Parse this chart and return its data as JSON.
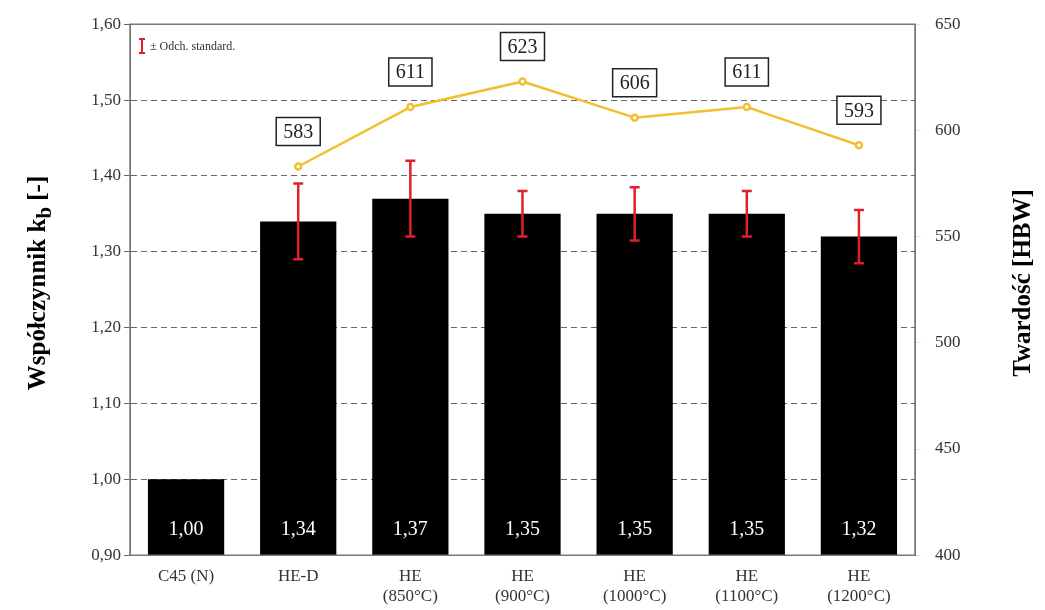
{
  "chart_data": {
    "type": "bar",
    "ylabel": "Współczynnik k$_{b}$ [-]",
    "y2label": "Twardość [HBW]",
    "categories": [
      "C45 (N)",
      "HE-D",
      "HE\n(850°C)",
      "HE\n(900°C)",
      "HE\n(1000°C)",
      "HE\n(1100°C)",
      "HE\n(1200°C)"
    ],
    "series": [
      {
        "color": "#000000",
        "values": [
          1.0,
          1.34,
          1.37,
          1.35,
          1.35,
          1.35,
          1.32
        ],
        "errors": [
          null,
          0.05,
          0.05,
          0.03,
          0.035,
          0.03,
          0.035
        ],
        "value_labels": [
          "1,00",
          "1,34",
          "1,37",
          "1,35",
          "1,35",
          "1,35",
          "1,32"
        ]
      },
      {
        "type": "line",
        "axis": "y2",
        "color": "#f0c030",
        "values": [
          null,
          583,
          611,
          623,
          606,
          611,
          593
        ],
        "value_labels": [
          null,
          "583",
          "611",
          "623",
          "606",
          "611",
          "593"
        ]
      }
    ],
    "ylim": [
      0.9,
      1.6
    ],
    "yticks": [
      {
        "value": 0.9,
        "label": "0,90"
      },
      {
        "value": 1.0,
        "label": "1,00"
      },
      {
        "value": 1.1,
        "label": "1,10"
      },
      {
        "value": 1.2,
        "label": "1,20"
      },
      {
        "value": 1.3,
        "label": "1,30"
      },
      {
        "value": 1.4,
        "label": "1,40"
      },
      {
        "value": 1.5,
        "label": "1,50"
      },
      {
        "value": 1.6,
        "label": "1,60"
      }
    ],
    "y2lim": [
      400,
      650
    ],
    "y2ticks": [
      400,
      450,
      500,
      550,
      600,
      650
    ],
    "grid": "y",
    "legend": false,
    "marker": "circle",
    "line_style": "solid",
    "annotations": [
      "± Odch. standard."
    ]
  }
}
